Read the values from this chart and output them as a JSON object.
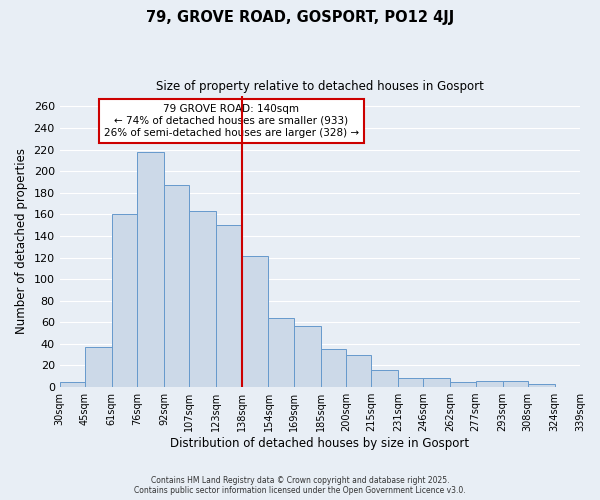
{
  "title": "79, GROVE ROAD, GOSPORT, PO12 4JJ",
  "subtitle": "Size of property relative to detached houses in Gosport",
  "xlabel": "Distribution of detached houses by size in Gosport",
  "ylabel": "Number of detached properties",
  "bar_color": "#ccd9e8",
  "bar_edge_color": "#6699cc",
  "background_color": "#e8eef5",
  "plot_bg_color": "#e8eef5",
  "grid_color": "#ffffff",
  "vline_color": "#cc0000",
  "vline_x": 138,
  "bin_edges": [
    30,
    45,
    61,
    76,
    92,
    107,
    123,
    138,
    154,
    169,
    185,
    200,
    215,
    231,
    246,
    262,
    277,
    293,
    308,
    324,
    339
  ],
  "bin_labels": [
    "30sqm",
    "45sqm",
    "61sqm",
    "76sqm",
    "92sqm",
    "107sqm",
    "123sqm",
    "138sqm",
    "154sqm",
    "169sqm",
    "185sqm",
    "200sqm",
    "215sqm",
    "231sqm",
    "246sqm",
    "262sqm",
    "277sqm",
    "293sqm",
    "308sqm",
    "324sqm",
    "339sqm"
  ],
  "counts": [
    5,
    37,
    160,
    218,
    187,
    163,
    150,
    121,
    64,
    57,
    35,
    30,
    16,
    8,
    8,
    5,
    6,
    6,
    3,
    0
  ],
  "ylim": [
    0,
    270
  ],
  "yticks": [
    0,
    20,
    40,
    60,
    80,
    100,
    120,
    140,
    160,
    180,
    200,
    220,
    240,
    260
  ],
  "annotation_title": "79 GROVE ROAD: 140sqm",
  "annotation_line1": "← 74% of detached houses are smaller (933)",
  "annotation_line2": "26% of semi-detached houses are larger (328) →",
  "annotation_box_color": "#ffffff",
  "annotation_box_edge": "#cc0000",
  "footer1": "Contains HM Land Registry data © Crown copyright and database right 2025.",
  "footer2": "Contains public sector information licensed under the Open Government Licence v3.0."
}
